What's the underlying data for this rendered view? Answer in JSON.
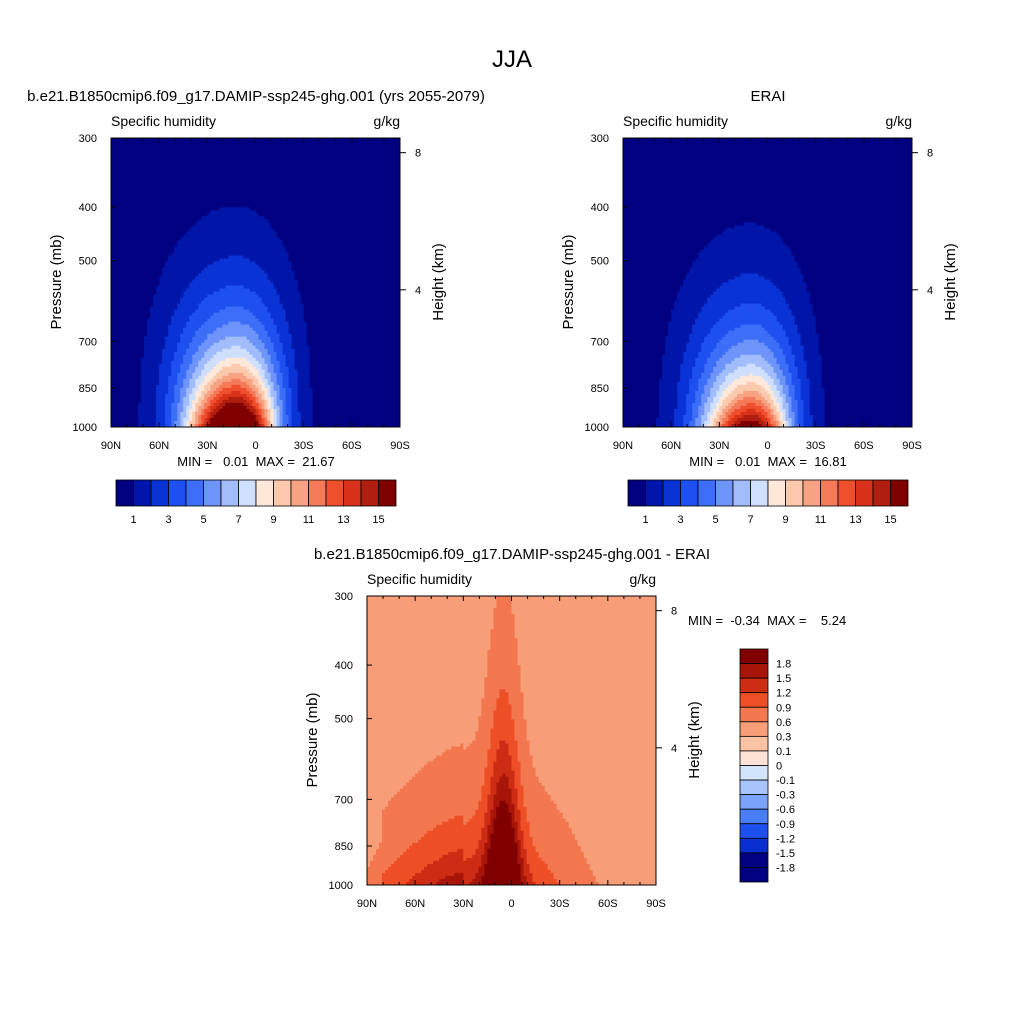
{
  "figure": {
    "title": "JJA"
  },
  "palette": {
    "abs": [
      "#000080",
      "#0016a8",
      "#0a33d6",
      "#1e50f0",
      "#3c6ef8",
      "#6e94fa",
      "#a2bdfb",
      "#cfdffd",
      "#fde8da",
      "#fbc9ad",
      "#f7a283",
      "#f47a5a",
      "#ef4f2c",
      "#d8321a",
      "#b01e10",
      "#800000"
    ],
    "diff": [
      "#000080",
      "#0a2fd0",
      "#1e50f0",
      "#4a7df8",
      "#7aa4fa",
      "#a8c5fb",
      "#d3e4fd",
      "#fde3d5",
      "#fbc3a3",
      "#f79e78",
      "#f3774f",
      "#ee4f26",
      "#cc2d14",
      "#a81509",
      "#800000"
    ]
  },
  "chart_data": [
    {
      "type": "contour",
      "title": "b.e21.B1850cmip6.f09_g17.DAMIP-ssp245-ghg.001 (yrs 2055-2079)",
      "left_string": "Specific humidity",
      "right_string": "g/kg",
      "ylabel": "Pressure (mb)",
      "y2label": "Height (km)",
      "x_ticks": [
        "90N",
        "60N",
        "30N",
        "0",
        "30S",
        "60S",
        "90S"
      ],
      "y_ticks": [
        "300",
        "400",
        "500",
        "700",
        "850",
        "1000"
      ],
      "y2_ticks": [
        "8",
        "4"
      ],
      "xlim": [
        90,
        -90
      ],
      "ylim": [
        1000,
        300
      ],
      "min_max_label": "MIN =   0.01  MAX =  21.67",
      "min": 0.01,
      "max": 21.67,
      "peak_lat": 12,
      "colorbar": {
        "orientation": "horizontal",
        "labels": [
          "1",
          "3",
          "5",
          "7",
          "9",
          "11",
          "13",
          "15"
        ]
      }
    },
    {
      "type": "contour",
      "title": "ERAI",
      "left_string": "Specific humidity",
      "right_string": "g/kg",
      "ylabel": "Pressure (mb)",
      "y2label": "Height (km)",
      "x_ticks": [
        "90N",
        "60N",
        "30N",
        "0",
        "30S",
        "60S",
        "90S"
      ],
      "y_ticks": [
        "300",
        "400",
        "500",
        "700",
        "850",
        "1000"
      ],
      "y2_ticks": [
        "8",
        "4"
      ],
      "xlim": [
        90,
        -90
      ],
      "ylim": [
        1000,
        300
      ],
      "min_max_label": "MIN =   0.01  MAX =  16.81",
      "min": 0.01,
      "max": 16.81,
      "peak_lat": 10,
      "colorbar": {
        "orientation": "horizontal",
        "labels": [
          "1",
          "3",
          "5",
          "7",
          "9",
          "11",
          "13",
          "15"
        ]
      }
    },
    {
      "type": "contour",
      "title": "b.e21.B1850cmip6.f09_g17.DAMIP-ssp245-ghg.001 - ERAI",
      "left_string": "Specific humidity",
      "right_string": "g/kg",
      "ylabel": "Pressure (mb)",
      "y2label": "Height (km)",
      "x_ticks": [
        "90N",
        "60N",
        "30N",
        "0",
        "30S",
        "60S",
        "90S"
      ],
      "y_ticks": [
        "300",
        "400",
        "500",
        "700",
        "850",
        "1000"
      ],
      "y2_ticks": [
        "8",
        "4"
      ],
      "xlim": [
        90,
        -90
      ],
      "ylim": [
        1000,
        300
      ],
      "min_max_label": "MIN =  -0.34  MAX =    5.24",
      "min": -0.34,
      "max": 5.24,
      "colorbar": {
        "orientation": "vertical",
        "labels": [
          "1.8",
          "1.5",
          "1.2",
          "0.9",
          "0.6",
          "0.3",
          "0.1",
          "0",
          "-0.1",
          "-0.3",
          "-0.6",
          "-0.9",
          "-1.2",
          "-1.5",
          "-1.8"
        ]
      }
    }
  ]
}
